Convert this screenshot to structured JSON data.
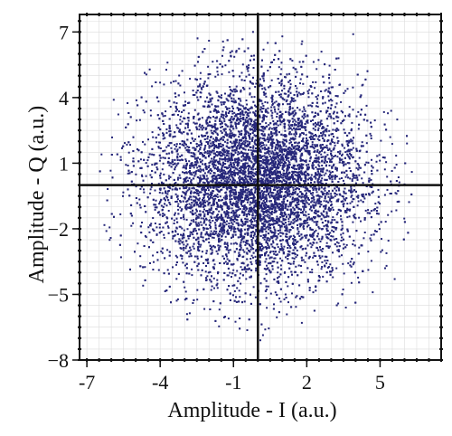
{
  "chart_data": {
    "type": "scatter",
    "title": "",
    "xlabel": "Amplitude - I (a.u.)",
    "ylabel": "Amplitude - Q (a.u.)",
    "xlim": [
      -7.3,
      7.5
    ],
    "ylim": [
      -8.0,
      7.8
    ],
    "x_ticks": [
      -7,
      -4,
      -1,
      2,
      5
    ],
    "x_tick_labels": [
      "-7",
      "-4",
      "-1",
      "2",
      "5"
    ],
    "y_ticks": [
      7,
      4,
      1,
      -2,
      -5,
      -8
    ],
    "y_tick_labels": [
      "7",
      "4",
      "1",
      "−2",
      "−5",
      "−8"
    ],
    "grid": true,
    "point_color": "#26277a",
    "crosshair": {
      "x": 0.0,
      "y": 0.0
    },
    "point_cloud": {
      "count": 9000,
      "center": [
        0.0,
        0.2
      ],
      "std": [
        2.2,
        2.3
      ],
      "x_extent": [
        -6.6,
        6.6
      ],
      "y_extent": [
        -7.3,
        7.0
      ]
    },
    "points": [
      {
        "x": -0.2,
        "y": 7.0
      },
      {
        "x": 1.0,
        "y": 6.8
      },
      {
        "x": 3.9,
        "y": 6.9
      },
      {
        "x": -2.0,
        "y": 6.6
      },
      {
        "x": -3.7,
        "y": 5.6
      },
      {
        "x": 3.3,
        "y": 5.8
      },
      {
        "x": -5.9,
        "y": 3.9
      },
      {
        "x": 5.7,
        "y": 3.0
      },
      {
        "x": 6.3,
        "y": 0.6
      },
      {
        "x": -6.2,
        "y": -2.1
      },
      {
        "x": 5.6,
        "y": -4.3
      },
      {
        "x": -4.7,
        "y": -4.6
      },
      {
        "x": 0.1,
        "y": -7.1
      },
      {
        "x": 1.8,
        "y": -6.3
      },
      {
        "x": -1.2,
        "y": -6.1
      },
      {
        "x": 3.6,
        "y": -5.6
      },
      {
        "x": -2.9,
        "y": -5.9
      },
      {
        "x": 4.7,
        "y": -4.9
      },
      {
        "x": -5.6,
        "y": -3.3
      },
      {
        "x": 6.1,
        "y": 1.9
      },
      {
        "x": -6.4,
        "y": 1.4
      },
      {
        "x": 2.6,
        "y": 6.1
      },
      {
        "x": -1.4,
        "y": 6.3
      },
      {
        "x": 0.3,
        "y": -6.6
      }
    ]
  }
}
